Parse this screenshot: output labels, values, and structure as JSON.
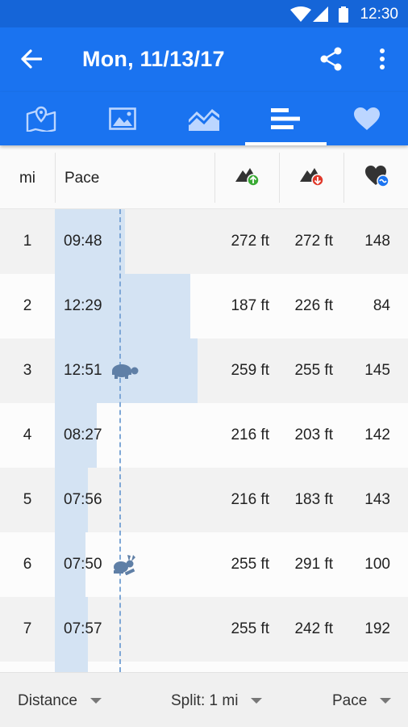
{
  "status_bar": {
    "time": "12:30"
  },
  "app_bar": {
    "title": "Mon, 11/13/17"
  },
  "tabs": [
    {
      "icon": "map-icon"
    },
    {
      "icon": "image-icon"
    },
    {
      "icon": "chart-icon"
    },
    {
      "icon": "splits-icon",
      "selected": true
    },
    {
      "icon": "heart-icon"
    }
  ],
  "table": {
    "headers": {
      "distance": "mi",
      "pace": "Pace",
      "ascent_icon": "ascent-icon",
      "descent_icon": "descent-icon",
      "heart_rate_icon": "heart-rate-icon"
    },
    "rows": [
      {
        "mi": "1",
        "pace": "09:48",
        "pace_fraction": 0.3,
        "ascent": "272 ft",
        "descent": "272 ft",
        "hr": "148"
      },
      {
        "mi": "2",
        "pace": "12:29",
        "pace_fraction": 0.58,
        "ascent": "187 ft",
        "descent": "226 ft",
        "hr": "84"
      },
      {
        "mi": "3",
        "pace": "12:51",
        "pace_fraction": 0.61,
        "ascent": "259 ft",
        "descent": "255 ft",
        "hr": "145",
        "marker": "turtle-icon"
      },
      {
        "mi": "4",
        "pace": "08:27",
        "pace_fraction": 0.18,
        "ascent": "216 ft",
        "descent": "203 ft",
        "hr": "142"
      },
      {
        "mi": "5",
        "pace": "07:56",
        "pace_fraction": 0.14,
        "ascent": "216 ft",
        "descent": "183 ft",
        "hr": "143"
      },
      {
        "mi": "6",
        "pace": "07:50",
        "pace_fraction": 0.13,
        "ascent": "255 ft",
        "descent": "291 ft",
        "hr": "100",
        "marker": "rabbit-icon"
      },
      {
        "mi": "7",
        "pace": "07:57",
        "pace_fraction": 0.14,
        "ascent": "255 ft",
        "descent": "242 ft",
        "hr": "192"
      },
      {
        "mi": "",
        "pace": "",
        "pace_fraction": 0.14,
        "ascent": "",
        "descent": "",
        "hr": ""
      }
    ]
  },
  "bottom_bar": {
    "distance_label": "Distance",
    "split_label": "Split: 1 mi",
    "pace_label": "Pace"
  },
  "colors": {
    "primary": "#1a73f0",
    "status_bar": "#1565d8",
    "bar_fill": "#d4e3f3",
    "avg_line": "#7ea7d6",
    "marker": "#5f7fa6"
  }
}
